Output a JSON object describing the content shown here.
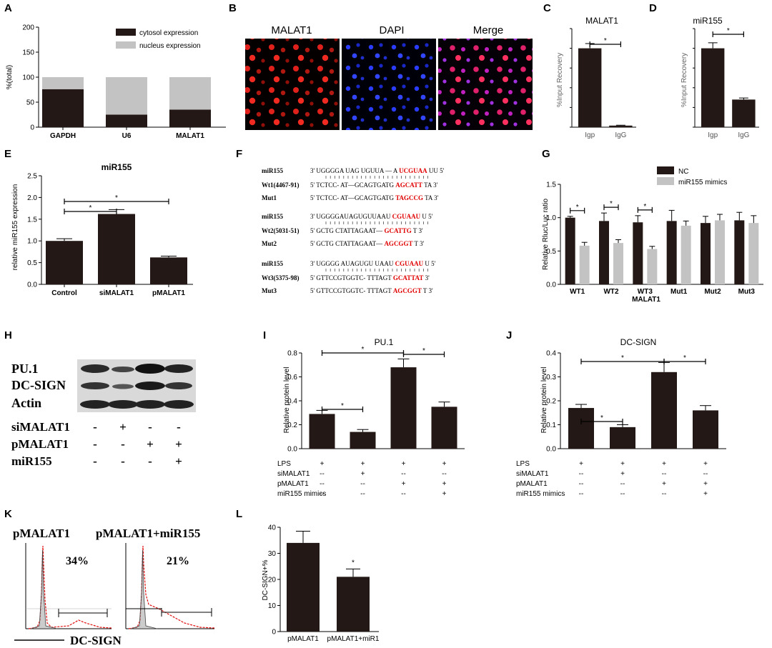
{
  "panels": {
    "A": {
      "label": "A",
      "legend": [
        "cytosol expression",
        "nucleus expression"
      ],
      "ylabel": "%(total)",
      "yticks": [
        "0",
        "50",
        "100",
        "150",
        "200"
      ]
    },
    "B": {
      "label": "B",
      "headers": [
        "MALAT1",
        "DAPI",
        "Merge"
      ]
    },
    "C": {
      "label": "C",
      "title": "MALAT1",
      "ylabel": "%Input Recovery",
      "star": "*"
    },
    "D": {
      "label": "D",
      "title": "miR155",
      "ylabel": "%Input Recovery",
      "star": "*"
    },
    "E": {
      "label": "E",
      "title": "miR155",
      "ylabel": "relative miR155 expression",
      "yticks": [
        "0.0",
        "0.5",
        "1.0",
        "1.5",
        "2.0",
        "2.5"
      ],
      "star": "*"
    },
    "F": {
      "label": "F",
      "rows": [
        {
          "name": "miR155",
          "seq": "3' UGGGGA UAG UGUUA — A",
          "red": "UCGUAA",
          "end": "UU 5'"
        },
        {
          "name": "Wt1(4467-91)",
          "seq": "5' TCTCC- AT—GCAGTGATG",
          "red": "AGCATT",
          "end": "TA 3'"
        },
        {
          "name": "Mut1",
          "seq": "5' TCTCC- AT—GCAGTGATG",
          "red": "TAGCCG",
          "end": "TA 3'"
        },
        {
          "name": "miR155",
          "seq": "3' UGGGGAUAGUGUUAAU",
          "red": "CGUAAU",
          "end": "U 5'"
        },
        {
          "name": "Wt2(5031-51)",
          "seq": "5' GCTG CTATTAGAAT—",
          "red": "GCATTG",
          "end": "T 3'"
        },
        {
          "name": "Mut2",
          "seq": "5' GCTG CTATTAGAAT—",
          "red": "AGCGGT",
          "end": "T 3'"
        },
        {
          "name": "miR155",
          "seq": "3' UGGGG    AUAGUGU UAAU",
          "red": "CGUAAU",
          "end": "U 5'"
        },
        {
          "name": "Wt3(5375-98)",
          "seq": "5' GTTCCGTGGTC- TTTAGT",
          "red": "GCATTAT",
          "end": "3'"
        },
        {
          "name": "Mut3",
          "seq": "5' GTTCCGTGGTC- TTTAGT",
          "red": "AGCGGT",
          "end": "T 3'"
        }
      ]
    },
    "G": {
      "label": "G",
      "legend": [
        "NC",
        "miR155 mimics"
      ],
      "ylabel": "Relative Rluc/Luc ratio",
      "xlabel": "MALAT1",
      "yticks": [
        "0.0",
        "0.5",
        "1.0",
        "1.5"
      ],
      "star": "*"
    },
    "H": {
      "label": "H",
      "proteins": [
        "PU.1",
        "DC-SIGN",
        "Actin"
      ],
      "rows": [
        {
          "name": "siMALAT1",
          "signs": [
            "-",
            "+",
            "-",
            "-"
          ]
        },
        {
          "name": "pMALAT1",
          "signs": [
            "-",
            "-",
            "+",
            "+"
          ]
        },
        {
          "name": "miR155",
          "signs": [
            "-",
            "-",
            "-",
            "+"
          ]
        }
      ]
    },
    "I": {
      "label": "I",
      "title": "PU.1",
      "ylabel": "Relative protein level",
      "yticks": [
        "0.0",
        "0.2",
        "0.4",
        "0.6",
        "0.8"
      ],
      "star": "*"
    },
    "J": {
      "label": "J",
      "title": "DC-SIGN",
      "ylabel": "Relative protein level",
      "yticks": [
        "0.0",
        "0.1",
        "0.2",
        "0.3",
        "0.4"
      ],
      "star": "*"
    },
    "K": {
      "label": "K",
      "titles": [
        "pMALAT1",
        "pMALAT1+miR155"
      ],
      "pcts": [
        "34%",
        "21%"
      ],
      "xlabel": "DC-SIGN"
    },
    "L": {
      "label": "L",
      "ylabel": "DC-SIGN+%",
      "yticks": [
        "0",
        "10",
        "20",
        "30",
        "40"
      ],
      "star": "*"
    }
  },
  "treatments": {
    "rows": [
      {
        "name": "LPS",
        "signs": [
          "+",
          "+",
          "+",
          "+"
        ]
      },
      {
        "name": "siMALAT1",
        "signs": [
          "--",
          "+",
          "--",
          "--"
        ]
      },
      {
        "name": "pMALAT1",
        "signs": [
          "--",
          "--",
          "+",
          "+"
        ]
      },
      {
        "name": "miR155 mimics",
        "signs": [
          "--",
          "--",
          "--",
          "+"
        ]
      }
    ]
  },
  "colors": {
    "dark": "#231815",
    "gray": "#c3c3c3",
    "seqred": "#e00000"
  },
  "chart_data": [
    {
      "id": "A",
      "type": "bar",
      "categories": [
        "GAPDH",
        "U6",
        "MALAT1"
      ],
      "series": [
        {
          "name": "cytosol expression",
          "values": [
            76,
            25,
            35
          ]
        },
        {
          "name": "nucleus expression",
          "values": [
            24,
            75,
            65
          ]
        }
      ],
      "stacked": true,
      "ylabel": "%(total)",
      "ylim": [
        0,
        200
      ]
    },
    {
      "id": "C",
      "type": "bar",
      "categories": [
        "Igp",
        "IgG"
      ],
      "values": [
        1.0,
        0.02
      ],
      "errors": [
        0.06,
        0.005
      ],
      "title": "MALAT1",
      "ylabel": "%Input Recovery"
    },
    {
      "id": "D",
      "type": "bar",
      "categories": [
        "Igp",
        "IgG"
      ],
      "values": [
        1.0,
        0.35
      ],
      "errors": [
        0.07,
        0.02
      ],
      "title": "miR155",
      "ylabel": "%Input Recovery"
    },
    {
      "id": "E",
      "type": "bar",
      "categories": [
        "Control",
        "siMALAT1",
        "pMALAT1"
      ],
      "values": [
        1.0,
        1.62,
        0.62
      ],
      "errors": [
        0.05,
        0.1,
        0.03
      ],
      "title": "miR155",
      "ylabel": "relative miR155 expression",
      "ylim": [
        0,
        2.5
      ]
    },
    {
      "id": "G",
      "type": "bar",
      "categories": [
        "WT1",
        "WT2",
        "WT3",
        "Mut1",
        "Mut2",
        "Mut3"
      ],
      "series": [
        {
          "name": "NC",
          "values": [
            1.0,
            0.95,
            0.93,
            0.95,
            0.92,
            0.96
          ],
          "errors": [
            0.02,
            0.12,
            0.1,
            0.16,
            0.1,
            0.12
          ]
        },
        {
          "name": "miR155 mimics",
          "values": [
            0.58,
            0.62,
            0.53,
            0.88,
            0.96,
            0.92
          ],
          "errors": [
            0.05,
            0.05,
            0.04,
            0.07,
            0.09,
            0.11
          ]
        }
      ],
      "xlabel": "MALAT1",
      "ylabel": "Relative Rluc/Luc ratio",
      "ylim": [
        0,
        1.5
      ]
    },
    {
      "id": "I",
      "type": "bar",
      "categories": [
        "1",
        "2",
        "3",
        "4"
      ],
      "values": [
        0.29,
        0.14,
        0.68,
        0.35
      ],
      "errors": [
        0.03,
        0.02,
        0.07,
        0.04
      ],
      "title": "PU.1",
      "ylabel": "Relative protein level",
      "ylim": [
        0,
        0.8
      ]
    },
    {
      "id": "J",
      "type": "bar",
      "categories": [
        "1",
        "2",
        "3",
        "4"
      ],
      "values": [
        0.17,
        0.09,
        0.32,
        0.16
      ],
      "errors": [
        0.015,
        0.01,
        0.04,
        0.02
      ],
      "title": "DC-SIGN",
      "ylabel": "Relative protein level",
      "ylim": [
        0,
        0.4
      ]
    },
    {
      "id": "L",
      "type": "bar",
      "categories": [
        "pMALAT1",
        "pMALAT1+miR1"
      ],
      "values": [
        34,
        21
      ],
      "errors": [
        4.5,
        3
      ],
      "ylabel": "DC-SIGN+%",
      "ylim": [
        0,
        40
      ]
    }
  ]
}
